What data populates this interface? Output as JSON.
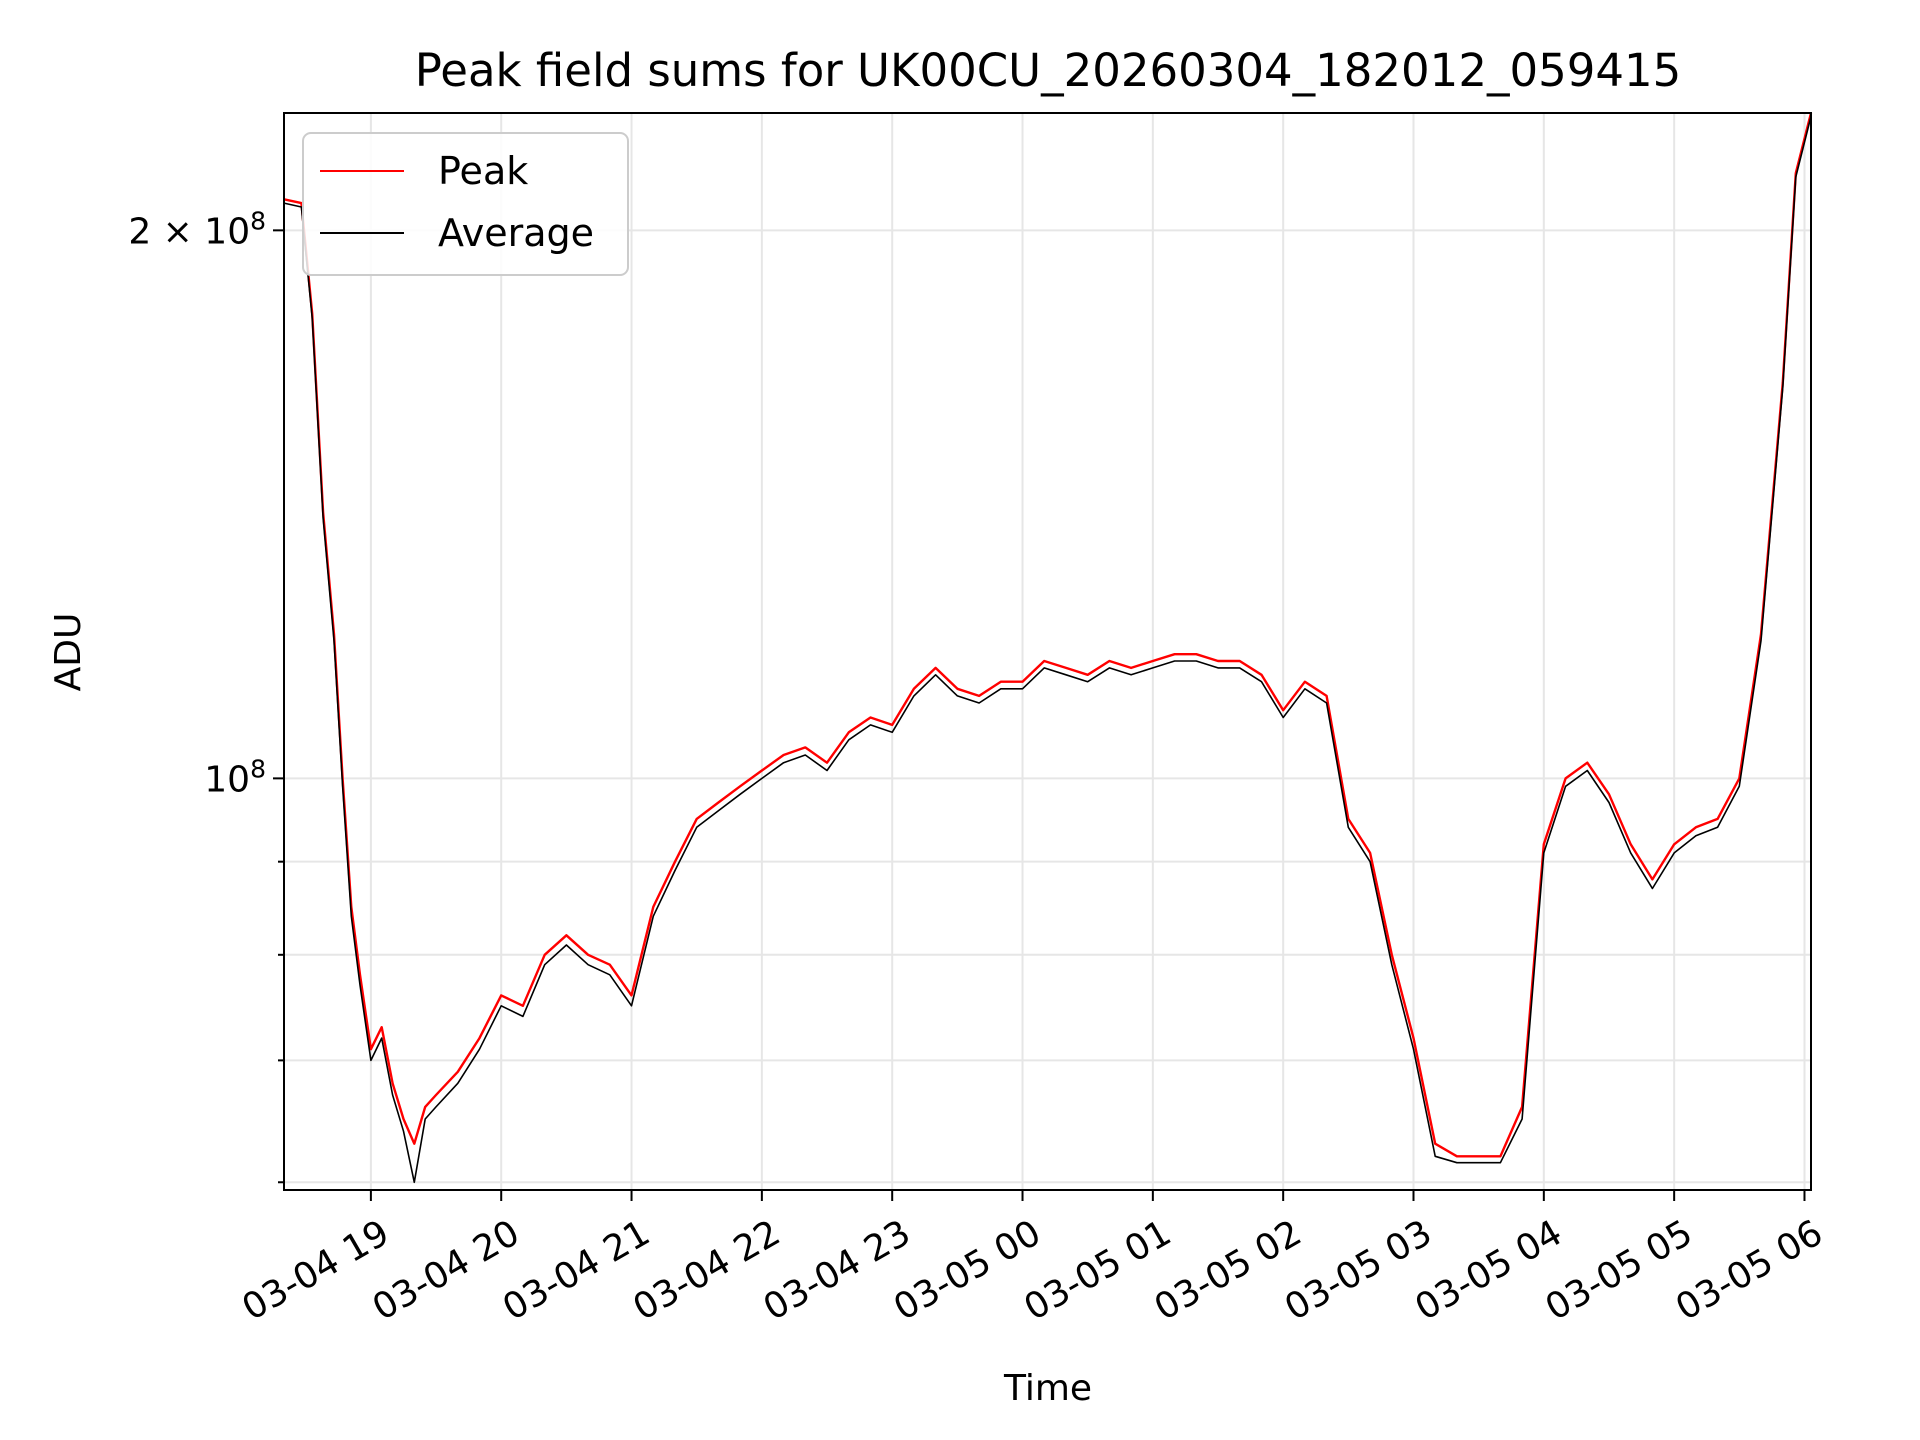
{
  "chart_data": {
    "type": "line",
    "title": "Peak field sums for UK00CU_20260304_182012_059415",
    "xlabel": "Time",
    "ylabel": "ADU",
    "yscale": "log",
    "xlim": [
      "2026-03-04 18:20",
      "2026-03-05 06:03"
    ],
    "ylim": [
      59415000,
      232000000
    ],
    "grid": true,
    "legend_position": "top-left",
    "x_ticks": [
      {
        "value": "2026-03-04 19:00",
        "label": "03-04 19"
      },
      {
        "value": "2026-03-04 20:00",
        "label": "03-04 20"
      },
      {
        "value": "2026-03-04 21:00",
        "label": "03-04 21"
      },
      {
        "value": "2026-03-04 22:00",
        "label": "03-04 22"
      },
      {
        "value": "2026-03-04 23:00",
        "label": "03-04 23"
      },
      {
        "value": "2026-03-05 00:00",
        "label": "03-05 00"
      },
      {
        "value": "2026-03-05 01:00",
        "label": "03-05 01"
      },
      {
        "value": "2026-03-05 02:00",
        "label": "03-05 02"
      },
      {
        "value": "2026-03-05 03:00",
        "label": "03-05 03"
      },
      {
        "value": "2026-03-05 04:00",
        "label": "03-05 04"
      },
      {
        "value": "2026-03-05 05:00",
        "label": "03-05 05"
      },
      {
        "value": "2026-03-05 06:00",
        "label": "03-05 06"
      }
    ],
    "y_major_ticks": [
      {
        "value": 100000000,
        "base": "10",
        "exp": "8",
        "prefix": ""
      },
      {
        "value": 200000000,
        "base": "10",
        "exp": "8",
        "prefix": "2 × "
      }
    ],
    "y_minor_ticks": [
      60000000,
      70000000,
      80000000,
      90000000
    ],
    "series": [
      {
        "name": "Peak",
        "color": "#ff0000",
        "x": [
          "2026-03-04 18:20",
          "2026-03-04 18:28",
          "2026-03-04 18:33",
          "2026-03-04 18:38",
          "2026-03-04 18:43",
          "2026-03-04 18:47",
          "2026-03-04 18:51",
          "2026-03-04 18:55",
          "2026-03-04 19:00",
          "2026-03-04 19:05",
          "2026-03-04 19:10",
          "2026-03-04 19:15",
          "2026-03-04 19:20",
          "2026-03-04 19:25",
          "2026-03-04 19:30",
          "2026-03-04 19:40",
          "2026-03-04 19:50",
          "2026-03-04 20:00",
          "2026-03-04 20:10",
          "2026-03-04 20:20",
          "2026-03-04 20:30",
          "2026-03-04 20:40",
          "2026-03-04 20:50",
          "2026-03-04 21:00",
          "2026-03-04 21:10",
          "2026-03-04 21:20",
          "2026-03-04 21:30",
          "2026-03-04 21:40",
          "2026-03-04 21:50",
          "2026-03-04 22:00",
          "2026-03-04 22:10",
          "2026-03-04 22:20",
          "2026-03-04 22:30",
          "2026-03-04 22:40",
          "2026-03-04 22:50",
          "2026-03-04 23:00",
          "2026-03-04 23:10",
          "2026-03-04 23:20",
          "2026-03-04 23:30",
          "2026-03-04 23:40",
          "2026-03-04 23:50",
          "2026-03-05 00:00",
          "2026-03-05 00:10",
          "2026-03-05 00:20",
          "2026-03-05 00:30",
          "2026-03-05 00:40",
          "2026-03-05 00:50",
          "2026-03-05 01:00",
          "2026-03-05 01:10",
          "2026-03-05 01:20",
          "2026-03-05 01:30",
          "2026-03-05 01:40",
          "2026-03-05 01:50",
          "2026-03-05 02:00",
          "2026-03-05 02:10",
          "2026-03-05 02:20",
          "2026-03-05 02:30",
          "2026-03-05 02:40",
          "2026-03-05 02:50",
          "2026-03-05 03:00",
          "2026-03-05 03:10",
          "2026-03-05 03:20",
          "2026-03-05 03:30",
          "2026-03-05 03:40",
          "2026-03-05 03:50",
          "2026-03-05 04:00",
          "2026-03-05 04:10",
          "2026-03-05 04:20",
          "2026-03-05 04:30",
          "2026-03-05 04:40",
          "2026-03-05 04:50",
          "2026-03-05 05:00",
          "2026-03-05 05:10",
          "2026-03-05 05:20",
          "2026-03-05 05:30",
          "2026-03-05 05:40",
          "2026-03-05 05:50",
          "2026-03-05 05:56",
          "2026-03-05 06:03"
        ],
        "y": [
          208000000,
          207000000,
          180000000,
          140000000,
          120000000,
          100000000,
          85000000,
          78000000,
          71000000,
          73000000,
          68000000,
          65000000,
          63000000,
          66000000,
          67000000,
          69000000,
          72000000,
          76000000,
          75000000,
          80000000,
          82000000,
          80000000,
          79000000,
          76000000,
          85000000,
          90000000,
          95000000,
          97000000,
          99000000,
          101000000,
          103000000,
          104000000,
          102000000,
          106000000,
          108000000,
          107000000,
          112000000,
          115000000,
          112000000,
          111000000,
          113000000,
          113000000,
          116000000,
          115000000,
          114000000,
          116000000,
          115000000,
          116000000,
          117000000,
          117000000,
          116000000,
          116000000,
          114000000,
          109000000,
          113000000,
          111000000,
          95000000,
          91000000,
          80000000,
          72000000,
          63000000,
          62000000,
          62000000,
          62000000,
          66000000,
          92000000,
          100000000,
          102000000,
          98000000,
          92000000,
          88000000,
          92000000,
          94000000,
          95000000,
          100000000,
          120000000,
          165000000,
          215000000,
          232000000
        ]
      },
      {
        "name": "Average",
        "color": "#000000",
        "x": [
          "2026-03-04 18:20",
          "2026-03-04 18:28",
          "2026-03-04 18:33",
          "2026-03-04 18:38",
          "2026-03-04 18:43",
          "2026-03-04 18:47",
          "2026-03-04 18:51",
          "2026-03-04 18:55",
          "2026-03-04 19:00",
          "2026-03-04 19:05",
          "2026-03-04 19:10",
          "2026-03-04 19:15",
          "2026-03-04 19:20",
          "2026-03-04 19:25",
          "2026-03-04 19:30",
          "2026-03-04 19:40",
          "2026-03-04 19:50",
          "2026-03-04 20:00",
          "2026-03-04 20:10",
          "2026-03-04 20:20",
          "2026-03-04 20:30",
          "2026-03-04 20:40",
          "2026-03-04 20:50",
          "2026-03-04 21:00",
          "2026-03-04 21:10",
          "2026-03-04 21:20",
          "2026-03-04 21:30",
          "2026-03-04 21:40",
          "2026-03-04 21:50",
          "2026-03-04 22:00",
          "2026-03-04 22:10",
          "2026-03-04 22:20",
          "2026-03-04 22:30",
          "2026-03-04 22:40",
          "2026-03-04 22:50",
          "2026-03-04 23:00",
          "2026-03-04 23:10",
          "2026-03-04 23:20",
          "2026-03-04 23:30",
          "2026-03-04 23:40",
          "2026-03-04 23:50",
          "2026-03-05 00:00",
          "2026-03-05 00:10",
          "2026-03-05 00:20",
          "2026-03-05 00:30",
          "2026-03-05 00:40",
          "2026-03-05 00:50",
          "2026-03-05 01:00",
          "2026-03-05 01:10",
          "2026-03-05 01:20",
          "2026-03-05 01:30",
          "2026-03-05 01:40",
          "2026-03-05 01:50",
          "2026-03-05 02:00",
          "2026-03-05 02:10",
          "2026-03-05 02:20",
          "2026-03-05 02:30",
          "2026-03-05 02:40",
          "2026-03-05 02:50",
          "2026-03-05 03:00",
          "2026-03-05 03:10",
          "2026-03-05 03:20",
          "2026-03-05 03:30",
          "2026-03-05 03:40",
          "2026-03-05 03:50",
          "2026-03-05 04:00",
          "2026-03-05 04:10",
          "2026-03-05 04:20",
          "2026-03-05 04:30",
          "2026-03-05 04:40",
          "2026-03-05 04:50",
          "2026-03-05 05:00",
          "2026-03-05 05:10",
          "2026-03-05 05:20",
          "2026-03-05 05:30",
          "2026-03-05 05:40",
          "2026-03-05 05:50",
          "2026-03-05 05:56",
          "2026-03-05 06:03"
        ],
        "y": [
          207000000,
          206000000,
          179000000,
          139000000,
          119000000,
          99000000,
          84000000,
          77000000,
          70000000,
          72000000,
          67000000,
          64000000,
          60000000,
          65000000,
          66000000,
          68000000,
          71000000,
          75000000,
          74000000,
          79000000,
          81000000,
          79000000,
          78000000,
          75000000,
          84000000,
          89000000,
          94000000,
          96000000,
          98000000,
          100000000,
          102000000,
          103000000,
          101000000,
          105000000,
          107000000,
          106000000,
          111000000,
          114000000,
          111000000,
          110000000,
          112000000,
          112000000,
          115000000,
          114000000,
          113000000,
          115000000,
          114000000,
          115000000,
          116000000,
          116000000,
          115000000,
          115000000,
          113000000,
          108000000,
          112000000,
          110000000,
          94000000,
          90000000,
          79000000,
          71000000,
          62000000,
          61500000,
          61500000,
          61500000,
          65000000,
          91000000,
          99000000,
          101000000,
          97000000,
          91000000,
          87000000,
          91000000,
          93000000,
          94000000,
          99000000,
          119000000,
          164000000,
          214000000,
          231000000
        ]
      }
    ]
  }
}
